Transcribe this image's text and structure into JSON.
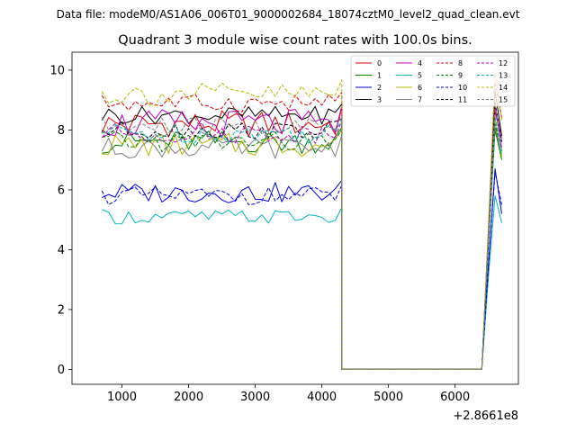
{
  "header": {
    "data_file": "Data file: modeM0/AS1A06_006T01_9000002684_18074cztM0_level2_quad_clean.evt"
  },
  "chart_data": {
    "type": "line",
    "title": "Quadrant 3 module wise count rates with 100.0s bins.",
    "xlabel": "",
    "ylabel": "",
    "x_offset_label": "+2.8661e8",
    "xlim": [
      250,
      6950
    ],
    "ylim": [
      -0.5,
      10.6
    ],
    "xticks": [
      1000,
      2000,
      3000,
      4000,
      5000,
      6000
    ],
    "xtick_labels": [
      "1000",
      "2000",
      "3000",
      "4000",
      "5000",
      "6000"
    ],
    "yticks": [
      0,
      2,
      4,
      6,
      8,
      10
    ],
    "ytick_labels": [
      "0",
      "2",
      "4",
      "6",
      "8",
      "10"
    ],
    "legend_placement": "top-right",
    "legend_columns": 4,
    "x_segment1_start": 700,
    "x_segment1_step": 100,
    "x_segment1_count": 37,
    "gap_x": [
      4300,
      6400
    ],
    "x_segment2": [
      6500,
      6600,
      6700
    ],
    "series": [
      {
        "name": "0",
        "color": "#e00000",
        "dash": "solid",
        "base": 8.2,
        "amp": 0.45,
        "tail": [
          4.5,
          8.6,
          7.8
        ]
      },
      {
        "name": "1",
        "color": "#008000",
        "dash": "solid",
        "base": 7.6,
        "amp": 0.4,
        "tail": [
          4.3,
          8.0,
          7.0
        ]
      },
      {
        "name": "2",
        "color": "#0000e0",
        "dash": "solid",
        "base": 5.9,
        "amp": 0.35,
        "tail": [
          3.5,
          6.7,
          5.2
        ]
      },
      {
        "name": "3",
        "color": "#000000",
        "dash": "solid",
        "base": 8.5,
        "amp": 0.3,
        "tail": [
          4.6,
          9.3,
          7.8
        ]
      },
      {
        "name": "4",
        "color": "#c000c0",
        "dash": "solid",
        "base": 8.2,
        "amp": 0.5,
        "tail": [
          4.4,
          8.8,
          7.4
        ]
      },
      {
        "name": "5",
        "color": "#00b8b8",
        "dash": "solid",
        "base": 5.1,
        "amp": 0.25,
        "tail": [
          3.1,
          5.8,
          4.9
        ]
      },
      {
        "name": "6",
        "color": "#b8b800",
        "dash": "solid",
        "base": 7.5,
        "amp": 0.4,
        "tail": [
          4.2,
          8.4,
          7.1
        ]
      },
      {
        "name": "7",
        "color": "#808080",
        "dash": "solid",
        "base": 7.4,
        "amp": 0.35,
        "tail": [
          4.2,
          8.1,
          7.2
        ]
      },
      {
        "name": "8",
        "color": "#e00000",
        "dash": "dashed",
        "base": 8.9,
        "amp": 0.3,
        "tail": [
          4.7,
          9.6,
          8.4
        ]
      },
      {
        "name": "9",
        "color": "#008000",
        "dash": "dashed",
        "base": 7.6,
        "amp": 0.35,
        "tail": [
          4.3,
          8.2,
          7.3
        ]
      },
      {
        "name": "10",
        "color": "#0000e0",
        "dash": "dashed",
        "base": 5.8,
        "amp": 0.3,
        "tail": [
          3.4,
          6.6,
          5.5
        ]
      },
      {
        "name": "11",
        "color": "#000000",
        "dash": "dashed",
        "base": 8.0,
        "amp": 0.3,
        "tail": [
          4.4,
          8.9,
          7.6
        ]
      },
      {
        "name": "12",
        "color": "#c000c0",
        "dash": "dashed",
        "base": 7.9,
        "amp": 0.35,
        "tail": [
          4.4,
          8.7,
          7.7
        ]
      },
      {
        "name": "13",
        "color": "#00b8b8",
        "dash": "dashed",
        "base": 7.9,
        "amp": 0.35,
        "tail": [
          4.3,
          8.5,
          7.2
        ]
      },
      {
        "name": "14",
        "color": "#b8b800",
        "dash": "dashed",
        "base": 9.2,
        "amp": 0.4,
        "tail": [
          4.8,
          10.0,
          8.3
        ]
      },
      {
        "name": "15",
        "color": "#808080",
        "dash": "dashed",
        "base": 8.1,
        "amp": 0.35,
        "tail": [
          4.5,
          8.8,
          7.7
        ]
      }
    ]
  }
}
